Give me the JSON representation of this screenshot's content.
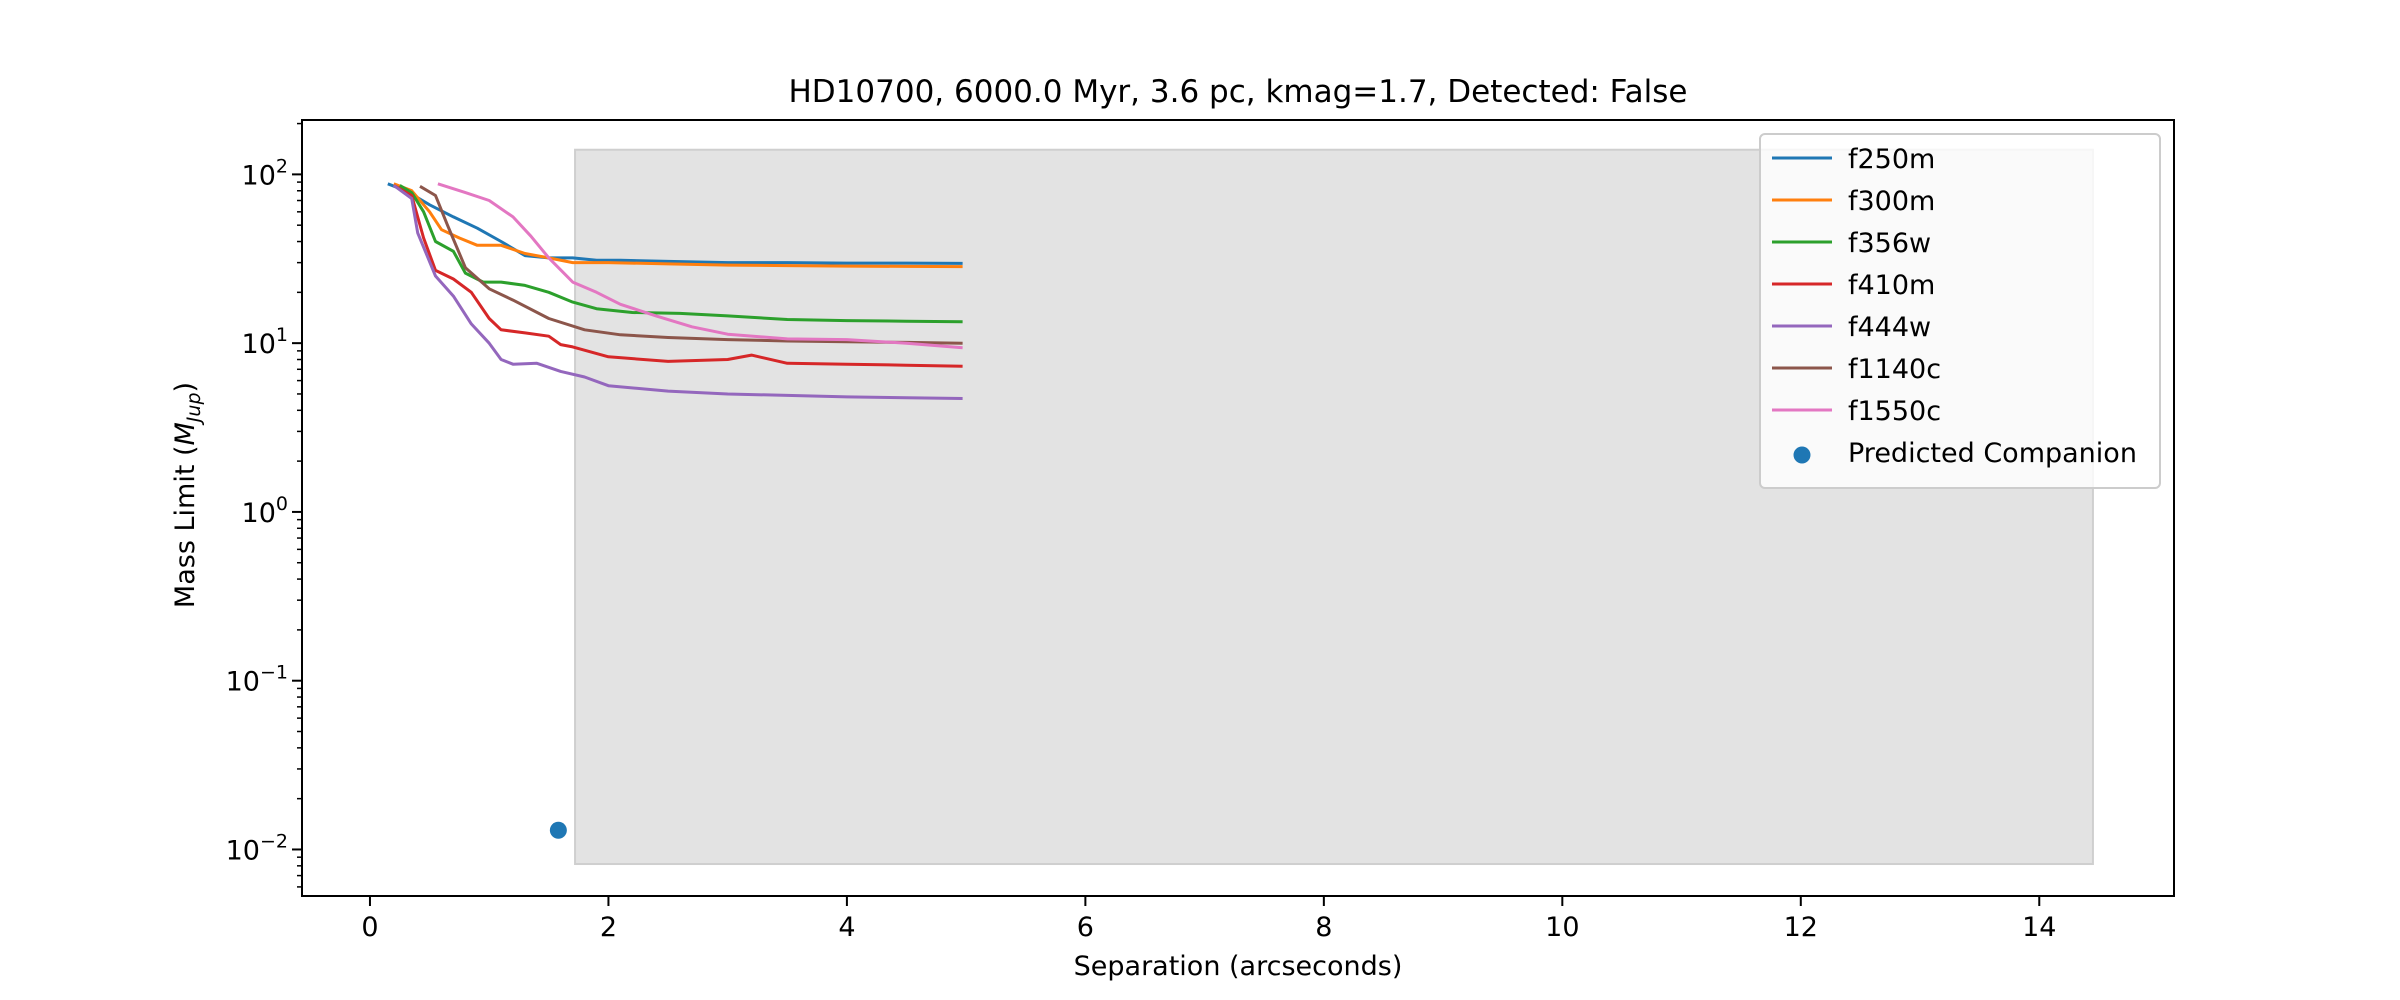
{
  "chart_data": {
    "type": "line",
    "title": "HD10700, 6000.0 Myr, 3.6 pc, kmag=1.7, Detected: False",
    "xlabel": "Separation (arcseconds)",
    "ylabel_prefix": "Mass Limit (",
    "ylabel_symbol": "M",
    "ylabel_subscript": "Jup",
    "ylabel_suffix": ")",
    "xlim": [
      -0.57,
      15.13
    ],
    "ylim": [
      0.0053,
      210
    ],
    "yscale": "log",
    "grid": false,
    "legend_position": "upper right",
    "x_ticks": [
      {
        "value": 0,
        "label": "0"
      },
      {
        "value": 2,
        "label": "2"
      },
      {
        "value": 4,
        "label": "4"
      },
      {
        "value": 6,
        "label": "6"
      },
      {
        "value": 8,
        "label": "8"
      },
      {
        "value": 10,
        "label": "10"
      },
      {
        "value": 12,
        "label": "12"
      },
      {
        "value": 14,
        "label": "14"
      }
    ],
    "y_ticks": [
      {
        "value": 100,
        "base": "10",
        "exp": "2"
      },
      {
        "value": 10,
        "base": "10",
        "exp": "1"
      },
      {
        "value": 1,
        "base": "10",
        "exp": "0"
      },
      {
        "value": 0.1,
        "base": "10",
        "exp": "−1"
      },
      {
        "value": 0.01,
        "base": "10",
        "exp": "−2"
      }
    ],
    "shaded_region": {
      "x": [
        1.72,
        14.45
      ],
      "y": [
        0.0082,
        140
      ],
      "color": "#e3e3e3"
    },
    "series": [
      {
        "name": "f250m",
        "color": "#1f77b4",
        "points": [
          [
            0.15,
            88
          ],
          [
            0.3,
            80
          ],
          [
            0.5,
            66
          ],
          [
            0.7,
            56
          ],
          [
            0.9,
            48
          ],
          [
            1.1,
            40
          ],
          [
            1.3,
            33
          ],
          [
            1.5,
            32
          ],
          [
            1.7,
            32
          ],
          [
            1.9,
            31
          ],
          [
            2.1,
            31
          ],
          [
            2.5,
            30.5
          ],
          [
            3.0,
            30
          ],
          [
            3.5,
            30
          ],
          [
            4.0,
            29.8
          ],
          [
            4.5,
            29.8
          ],
          [
            4.97,
            29.7
          ]
        ]
      },
      {
        "name": "f300m",
        "color": "#ff7f0e",
        "points": [
          [
            0.2,
            88
          ],
          [
            0.35,
            80
          ],
          [
            0.5,
            60
          ],
          [
            0.6,
            47
          ],
          [
            0.75,
            42
          ],
          [
            0.9,
            38
          ],
          [
            1.1,
            38
          ],
          [
            1.3,
            34
          ],
          [
            1.5,
            32
          ],
          [
            1.7,
            30
          ],
          [
            2.0,
            30
          ],
          [
            2.5,
            29.5
          ],
          [
            3.0,
            29
          ],
          [
            3.5,
            28.8
          ],
          [
            4.0,
            28.6
          ],
          [
            4.5,
            28.5
          ],
          [
            4.97,
            28.4
          ]
        ]
      },
      {
        "name": "f356w",
        "color": "#2ca02c",
        "points": [
          [
            0.25,
            86
          ],
          [
            0.35,
            78
          ],
          [
            0.45,
            60
          ],
          [
            0.55,
            40
          ],
          [
            0.7,
            35
          ],
          [
            0.8,
            26
          ],
          [
            0.95,
            23
          ],
          [
            1.1,
            23
          ],
          [
            1.3,
            22
          ],
          [
            1.5,
            20
          ],
          [
            1.7,
            17.5
          ],
          [
            1.9,
            16
          ],
          [
            2.2,
            15.2
          ],
          [
            2.6,
            15
          ],
          [
            3.0,
            14.5
          ],
          [
            3.5,
            13.8
          ],
          [
            4.0,
            13.6
          ],
          [
            4.5,
            13.5
          ],
          [
            4.97,
            13.4
          ]
        ]
      },
      {
        "name": "f410m",
        "color": "#d62728",
        "points": [
          [
            0.2,
            86
          ],
          [
            0.35,
            75
          ],
          [
            0.45,
            42
          ],
          [
            0.55,
            27
          ],
          [
            0.7,
            24
          ],
          [
            0.85,
            20
          ],
          [
            1.0,
            14
          ],
          [
            1.1,
            12
          ],
          [
            1.3,
            11.5
          ],
          [
            1.5,
            11
          ],
          [
            1.6,
            9.8
          ],
          [
            1.7,
            9.5
          ],
          [
            2.0,
            8.3
          ],
          [
            2.5,
            7.8
          ],
          [
            3.0,
            8
          ],
          [
            3.2,
            8.5
          ],
          [
            3.5,
            7.6
          ],
          [
            4.0,
            7.5
          ],
          [
            4.5,
            7.4
          ],
          [
            4.97,
            7.3
          ]
        ]
      },
      {
        "name": "f444w",
        "color": "#9467bd",
        "points": [
          [
            0.2,
            86
          ],
          [
            0.35,
            72
          ],
          [
            0.4,
            45
          ],
          [
            0.55,
            25
          ],
          [
            0.7,
            19
          ],
          [
            0.85,
            13
          ],
          [
            1.0,
            10
          ],
          [
            1.1,
            8
          ],
          [
            1.2,
            7.5
          ],
          [
            1.4,
            7.6
          ],
          [
            1.6,
            6.8
          ],
          [
            1.8,
            6.3
          ],
          [
            2.0,
            5.6
          ],
          [
            2.5,
            5.2
          ],
          [
            3.0,
            5.0
          ],
          [
            3.5,
            4.9
          ],
          [
            4.0,
            4.8
          ],
          [
            4.5,
            4.75
          ],
          [
            4.97,
            4.7
          ]
        ]
      },
      {
        "name": "f1140c",
        "color": "#8c564b",
        "points": [
          [
            0.42,
            85
          ],
          [
            0.55,
            75
          ],
          [
            0.65,
            50
          ],
          [
            0.8,
            28
          ],
          [
            1.0,
            21
          ],
          [
            1.2,
            18
          ],
          [
            1.5,
            14
          ],
          [
            1.8,
            12
          ],
          [
            2.1,
            11.2
          ],
          [
            2.5,
            10.8
          ],
          [
            3.0,
            10.5
          ],
          [
            3.5,
            10.3
          ],
          [
            4.0,
            10.2
          ],
          [
            4.5,
            10.1
          ],
          [
            4.97,
            10.0
          ]
        ]
      },
      {
        "name": "f1550c",
        "color": "#e377c2",
        "points": [
          [
            0.57,
            88
          ],
          [
            0.8,
            78
          ],
          [
            1.0,
            70
          ],
          [
            1.2,
            56
          ],
          [
            1.35,
            43
          ],
          [
            1.5,
            32
          ],
          [
            1.7,
            23
          ],
          [
            1.9,
            20
          ],
          [
            2.1,
            17
          ],
          [
            2.4,
            14.5
          ],
          [
            2.7,
            12.5
          ],
          [
            3.0,
            11.3
          ],
          [
            3.5,
            10.6
          ],
          [
            4.0,
            10.5
          ],
          [
            4.5,
            10.0
          ],
          [
            4.97,
            9.4
          ]
        ]
      }
    ],
    "scatter": {
      "name": "Predicted Companion",
      "color": "#1f77b4",
      "x": 1.58,
      "y": 0.013
    }
  }
}
